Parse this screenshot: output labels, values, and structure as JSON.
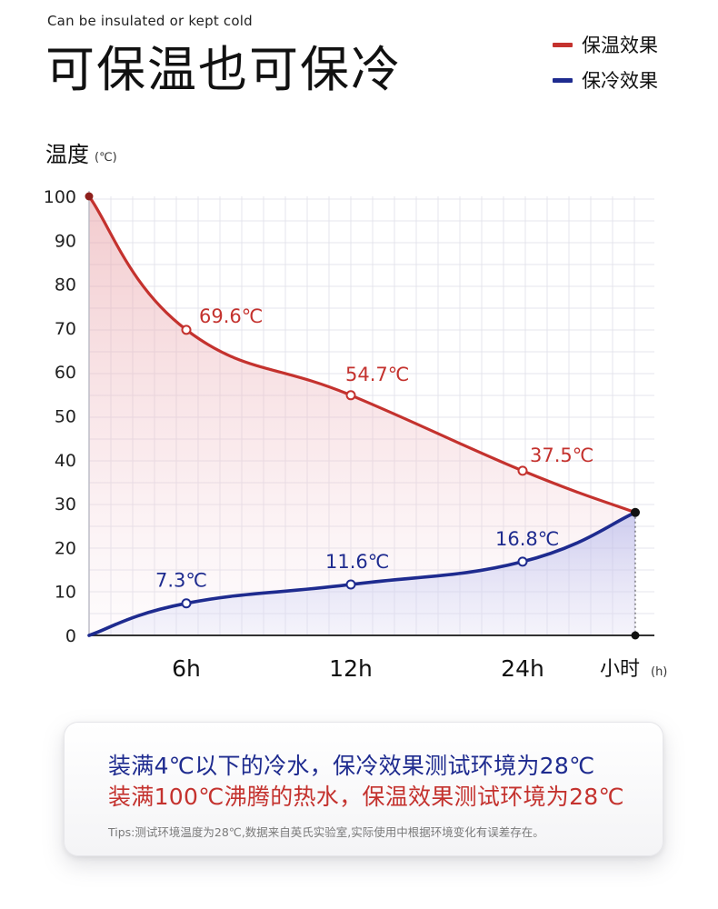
{
  "header": {
    "subtitle": "Can be insulated or kept cold",
    "title": "可保温也可保冷"
  },
  "legend": [
    {
      "label": "保温效果",
      "color": "#c4322e"
    },
    {
      "label": "保冷效果",
      "color": "#1e2b8f"
    }
  ],
  "chart_data": {
    "type": "line",
    "ylabel": "温度",
    "yunit": "(℃)",
    "xlabel": "小时",
    "xunit": "(h)",
    "ylim": [
      0,
      100
    ],
    "yticks": [
      0,
      10,
      20,
      30,
      40,
      50,
      60,
      70,
      80,
      90,
      100
    ],
    "xticks": [
      "6h",
      "12h",
      "24h"
    ],
    "grid": true,
    "series": [
      {
        "name": "保温效果",
        "color": "#c4322e",
        "points": [
          {
            "x": "0h",
            "y": 100
          },
          {
            "x": "6h",
            "y": 69.6,
            "label": "69.6℃"
          },
          {
            "x": "12h",
            "y": 54.7,
            "label": "54.7℃"
          },
          {
            "x": "24h",
            "y": 37.5,
            "label": "37.5℃"
          },
          {
            "x": "end",
            "y": 28
          }
        ]
      },
      {
        "name": "保冷效果",
        "color": "#1e2b8f",
        "points": [
          {
            "x": "0h",
            "y": 0
          },
          {
            "x": "6h",
            "y": 7.3,
            "label": "7.3℃"
          },
          {
            "x": "12h",
            "y": 11.6,
            "label": "11.6℃"
          },
          {
            "x": "24h",
            "y": 16.8,
            "label": "16.8℃"
          },
          {
            "x": "end",
            "y": 28
          }
        ]
      }
    ]
  },
  "note": {
    "cold_line": "装满4℃以下的冷水，保冷效果测试环境为28℃",
    "hot_line": "装满100℃沸腾的热水，保温效果测试环境为28℃",
    "tips": "Tips:测试环境温度为28℃,数据来自英氏实验室,实际使用中根据环境变化有误差存在。"
  }
}
